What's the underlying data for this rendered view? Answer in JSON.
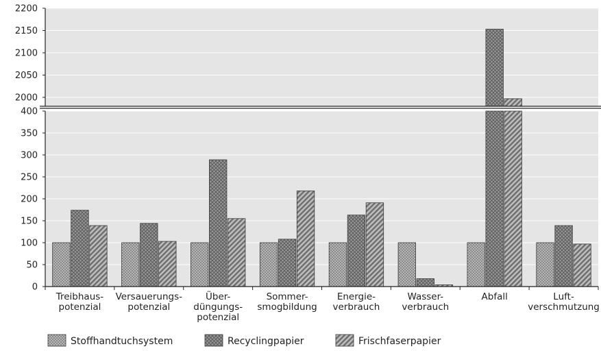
{
  "chart_data": {
    "type": "bar",
    "title": "",
    "xlabel": "",
    "ylabel": "",
    "categories": [
      [
        "Treibhaus-",
        "potenzial"
      ],
      [
        "Versauerungs-",
        "potenzial"
      ],
      [
        "Über-",
        "düngungs-",
        "potenzial"
      ],
      [
        "Sommer-",
        "smogbildung"
      ],
      [
        "Energie-",
        "verbrauch"
      ],
      [
        "Wasser-",
        "verbrauch"
      ],
      [
        "Abfall"
      ],
      [
        "Luft-",
        "verschmutzung"
      ]
    ],
    "series": [
      {
        "name": "Stoffhandtuchsystem",
        "pattern": "dots",
        "values": [
          100,
          100,
          100,
          100,
          100,
          100,
          100,
          100
        ]
      },
      {
        "name": "Recyclingpapier",
        "pattern": "crosshatch",
        "values": [
          174,
          144,
          289,
          108,
          163,
          18,
          2153,
          139
        ]
      },
      {
        "name": "Frischfaserpapier",
        "pattern": "diagonal",
        "values": [
          139,
          103,
          155,
          218,
          191,
          4,
          1997,
          97
        ]
      }
    ],
    "axis_break": true,
    "y_lower": {
      "range": [
        0,
        400
      ],
      "ticks": [
        "0",
        "50",
        "100",
        "150",
        "200",
        "250",
        "300",
        "350",
        "400"
      ]
    },
    "y_upper": {
      "range": [
        1980,
        2200
      ],
      "ticks": [
        "2000",
        "2050",
        "2100",
        "2150",
        "2200"
      ]
    },
    "grid": true,
    "legend_position": "bottom",
    "colors": {
      "plot_background": "#e5e5e5",
      "bar_fill": "#8c8c8c",
      "gridline": "#ffffff",
      "axis": "#222222"
    }
  }
}
